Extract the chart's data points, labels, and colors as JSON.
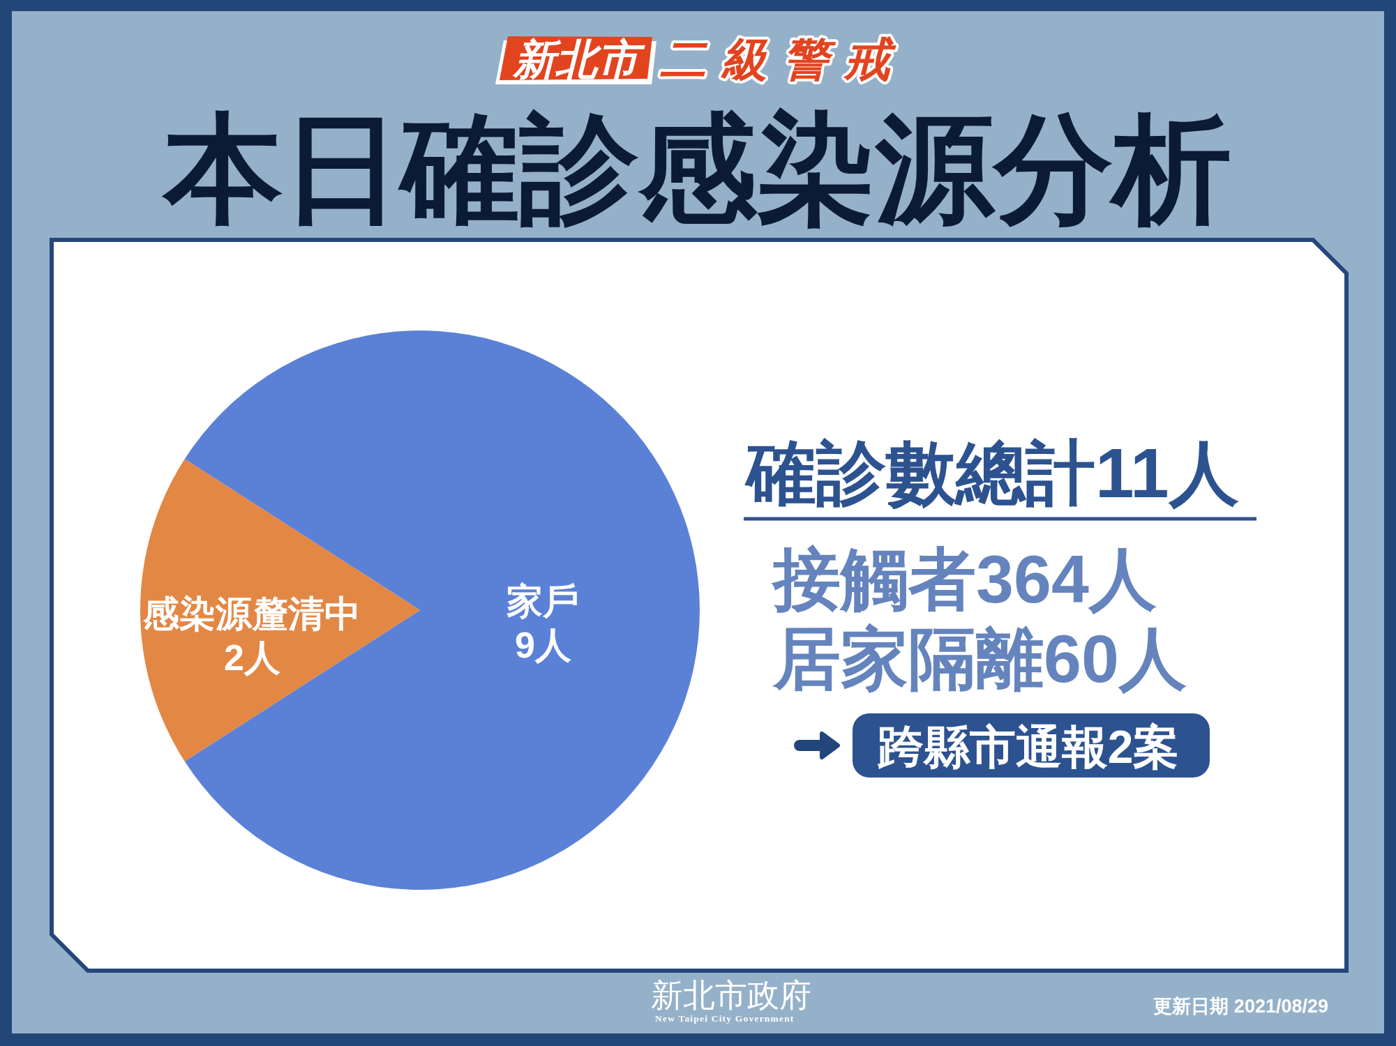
{
  "chart_data": {
    "type": "pie",
    "title": "本日確診感染源分析",
    "categories": [
      "家戶",
      "感染源釐清中"
    ],
    "values": [
      9,
      2
    ],
    "colors": [
      "#5b81d6",
      "#e38745"
    ],
    "value_labels": [
      "9人",
      "2人"
    ],
    "annotations": [
      "新北市",
      "二級警戒",
      "確診數總計11人",
      "接觸者364人",
      "居家隔離60人",
      "跨縣市通報2案",
      "新北市政府",
      "New Taipei City Government",
      "更新日期 2021/08/29"
    ]
  }
}
